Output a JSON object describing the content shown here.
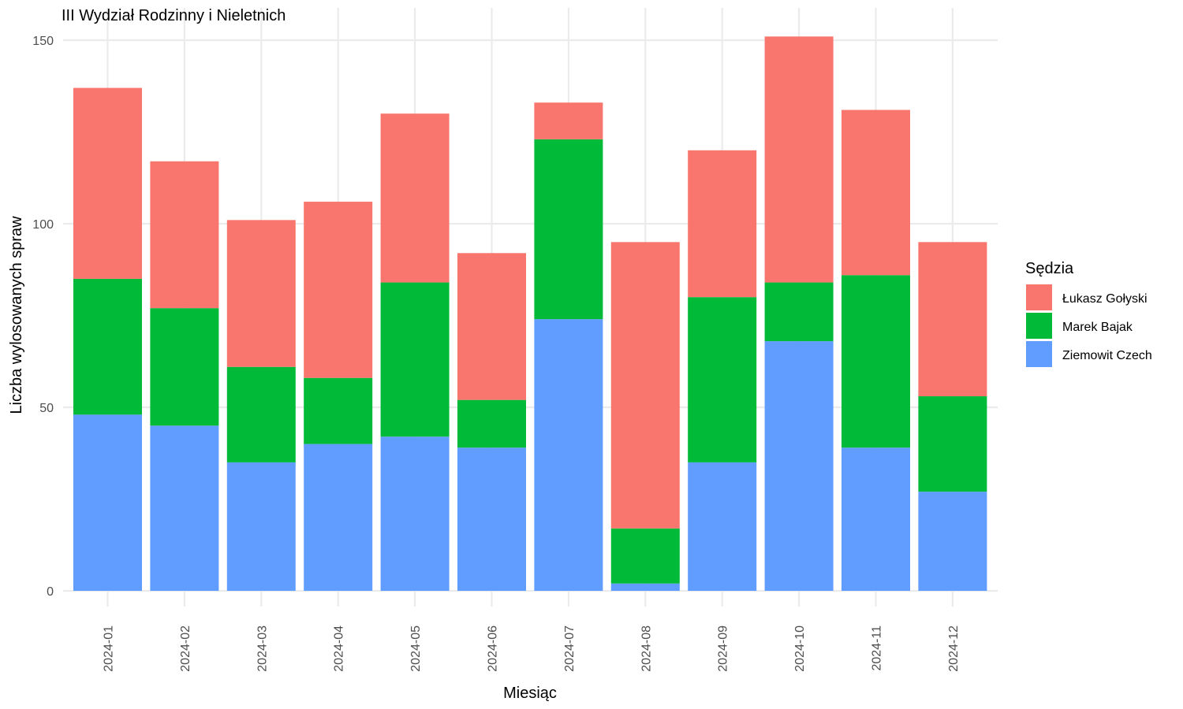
{
  "chart_data": {
    "type": "bar",
    "stacked": true,
    "title": "III Wydział Rodzinny i Nieletnich",
    "xlabel": "Miesiąc",
    "ylabel": "Liczba wylosowanych spraw",
    "ylim": [
      0,
      160
    ],
    "yticks": [
      0,
      50,
      100,
      150
    ],
    "grid": true,
    "legend_title": "Sędzia",
    "legend_position": "right",
    "categories": [
      "2024-01",
      "2024-02",
      "2024-03",
      "2024-04",
      "2024-05",
      "2024-06",
      "2024-07",
      "2024-08",
      "2024-09",
      "2024-10",
      "2024-11",
      "2024-12"
    ],
    "series": [
      {
        "name": "Ziemowit Czech",
        "color": "#619CFF",
        "values": [
          48,
          45,
          35,
          40,
          42,
          39,
          74,
          2,
          35,
          68,
          39,
          27
        ]
      },
      {
        "name": "Marek Bajak",
        "color": "#00BA38",
        "values": [
          37,
          32,
          26,
          18,
          42,
          13,
          49,
          15,
          45,
          16,
          47,
          26
        ]
      },
      {
        "name": "Łukasz Gołyski",
        "color": "#F8766D",
        "values": [
          52,
          40,
          40,
          48,
          46,
          40,
          10,
          78,
          40,
          67,
          45,
          42
        ]
      }
    ],
    "legend_order": [
      "Łukasz Gołyski",
      "Marek Bajak",
      "Ziemowit Czech"
    ]
  }
}
